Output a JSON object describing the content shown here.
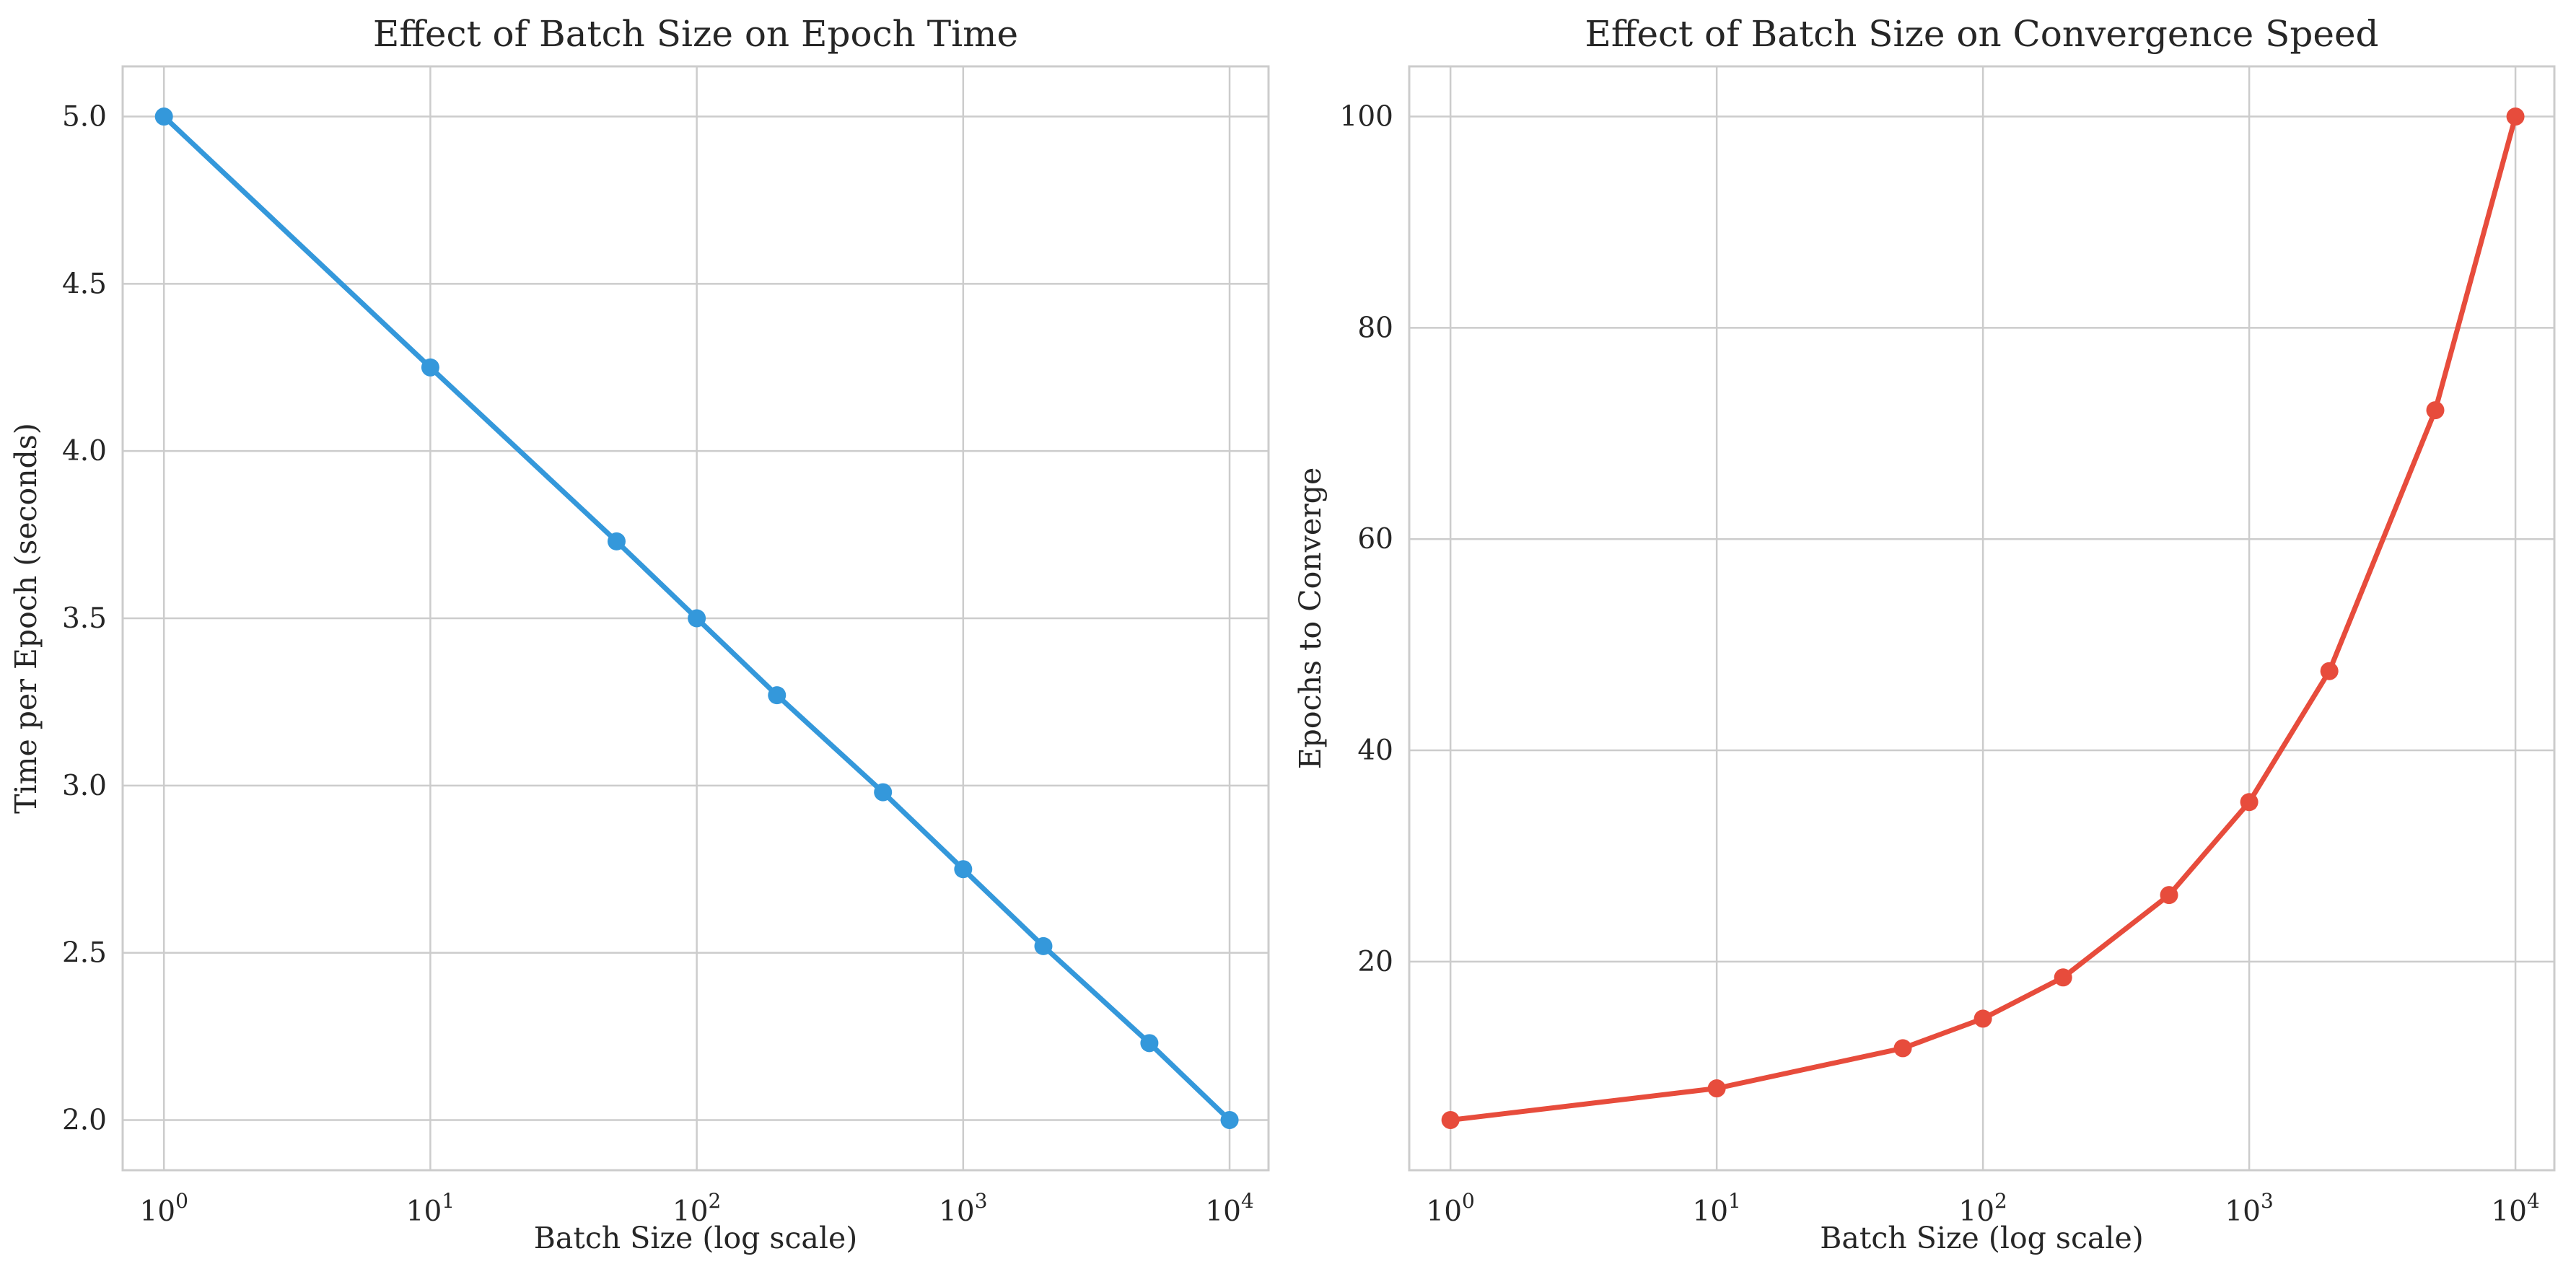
{
  "chart_data": [
    {
      "type": "line",
      "title": "Effect of Batch Size on Epoch Time",
      "xlabel": "Batch Size (log scale)",
      "ylabel": "Time per Epoch (seconds)",
      "xscale": "log",
      "grid": true,
      "xlim": [
        0.7,
        14000
      ],
      "ylim": [
        1.85,
        5.15
      ],
      "x_ticks": [
        {
          "base": "10",
          "exp": "0",
          "value": 1
        },
        {
          "base": "10",
          "exp": "1",
          "value": 10
        },
        {
          "base": "10",
          "exp": "2",
          "value": 100
        },
        {
          "base": "10",
          "exp": "3",
          "value": 1000
        },
        {
          "base": "10",
          "exp": "4",
          "value": 10000
        }
      ],
      "y_ticks": [
        {
          "label": "2.0",
          "value": 2.0
        },
        {
          "label": "2.5",
          "value": 2.5
        },
        {
          "label": "3.0",
          "value": 3.0
        },
        {
          "label": "3.5",
          "value": 3.5
        },
        {
          "label": "4.0",
          "value": 4.0
        },
        {
          "label": "4.5",
          "value": 4.5
        },
        {
          "label": "5.0",
          "value": 5.0
        }
      ],
      "color": "#3498db",
      "series": [
        {
          "x": [
            1,
            10,
            50,
            100,
            200,
            500,
            1000,
            2000,
            5000,
            10000
          ],
          "y": [
            5.0,
            4.25,
            3.73,
            3.5,
            3.27,
            2.98,
            2.75,
            2.52,
            2.23,
            2.0
          ]
        }
      ]
    },
    {
      "type": "line",
      "title": "Effect of Batch Size on Convergence Speed",
      "xlabel": "Batch Size (log scale)",
      "ylabel": "Epochs to Converge",
      "xscale": "log",
      "grid": true,
      "xlim": [
        0.7,
        14000
      ],
      "ylim": [
        0.25,
        104.75
      ],
      "x_ticks": [
        {
          "base": "10",
          "exp": "0",
          "value": 1
        },
        {
          "base": "10",
          "exp": "1",
          "value": 10
        },
        {
          "base": "10",
          "exp": "2",
          "value": 100
        },
        {
          "base": "10",
          "exp": "3",
          "value": 1000
        },
        {
          "base": "10",
          "exp": "4",
          "value": 10000
        }
      ],
      "y_ticks": [
        {
          "label": "20",
          "value": 20
        },
        {
          "label": "40",
          "value": 40
        },
        {
          "label": "60",
          "value": 60
        },
        {
          "label": "80",
          "value": 80
        },
        {
          "label": "100",
          "value": 100
        }
      ],
      "color": "#e74c3c",
      "series": [
        {
          "x": [
            1,
            10,
            50,
            100,
            200,
            500,
            1000,
            2000,
            5000,
            10000
          ],
          "y": [
            5.0,
            8.0,
            11.8,
            14.6,
            18.5,
            26.3,
            35.1,
            47.5,
            72.2,
            100.0
          ]
        }
      ]
    }
  ]
}
